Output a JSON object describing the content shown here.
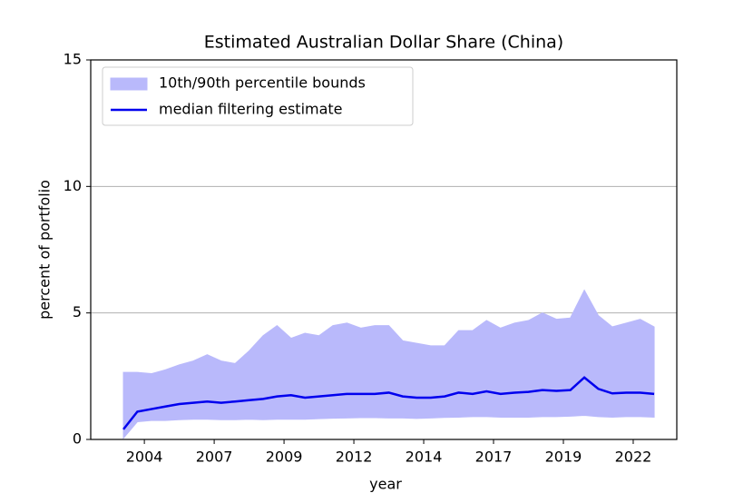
{
  "chart_data": {
    "type": "line",
    "title": "Estimated Australian Dollar Share (China)",
    "xlabel": "year",
    "ylabel": "percent of portfolio",
    "x": [
      2003.25,
      2003.75,
      2004.25,
      2004.75,
      2005.25,
      2005.75,
      2006.25,
      2006.75,
      2007.25,
      2007.75,
      2008.25,
      2008.75,
      2009.25,
      2009.75,
      2010.25,
      2010.75,
      2011.25,
      2011.75,
      2012.25,
      2012.75,
      2013.25,
      2013.75,
      2014.25,
      2014.75,
      2015.25,
      2015.75,
      2016.25,
      2016.75,
      2017.25,
      2017.75,
      2018.25,
      2018.75,
      2019.25,
      2019.75,
      2020.25,
      2020.75,
      2021.25,
      2021.75,
      2022.25
    ],
    "bands": [
      {
        "name": "10th/90th percentile bounds",
        "color": "#b9b9fb",
        "lower": [
          0.05,
          0.7,
          0.75,
          0.75,
          0.78,
          0.8,
          0.8,
          0.78,
          0.78,
          0.8,
          0.78,
          0.8,
          0.8,
          0.8,
          0.82,
          0.84,
          0.85,
          0.86,
          0.86,
          0.85,
          0.85,
          0.83,
          0.85,
          0.87,
          0.88,
          0.9,
          0.9,
          0.88,
          0.88,
          0.88,
          0.9,
          0.9,
          0.92,
          0.95,
          0.9,
          0.88,
          0.9,
          0.9,
          0.88
        ],
        "upper": [
          2.65,
          2.65,
          2.6,
          2.75,
          2.95,
          3.1,
          3.35,
          3.1,
          3.0,
          3.5,
          4.1,
          4.5,
          4.0,
          4.2,
          4.1,
          4.5,
          4.6,
          4.4,
          4.5,
          4.5,
          3.9,
          3.8,
          3.7,
          3.7,
          4.3,
          4.3,
          4.7,
          4.4,
          4.6,
          4.7,
          5.0,
          4.75,
          4.8,
          5.9,
          4.9,
          4.45,
          4.6,
          4.75,
          4.45
        ]
      }
    ],
    "series": [
      {
        "name": "median filtering estimate",
        "color": "#0000ee",
        "values": [
          0.4,
          1.1,
          1.2,
          1.3,
          1.4,
          1.45,
          1.5,
          1.45,
          1.5,
          1.55,
          1.6,
          1.7,
          1.75,
          1.65,
          1.7,
          1.75,
          1.8,
          1.8,
          1.8,
          1.85,
          1.7,
          1.65,
          1.65,
          1.7,
          1.85,
          1.8,
          1.9,
          1.8,
          1.85,
          1.88,
          1.95,
          1.92,
          1.95,
          2.45,
          2.0,
          1.82,
          1.85,
          1.85,
          1.8
        ]
      }
    ],
    "xlim": [
      2002.08,
      2023.06
    ],
    "xticks": [
      {
        "value": 2004,
        "label": "2004"
      },
      {
        "value": 2006.5,
        "label": "2007"
      },
      {
        "value": 2009,
        "label": "2009"
      },
      {
        "value": 2011.5,
        "label": "2012"
      },
      {
        "value": 2014,
        "label": "2014"
      },
      {
        "value": 2016.5,
        "label": "2017"
      },
      {
        "value": 2019,
        "label": "2019"
      },
      {
        "value": 2021.5,
        "label": "2022"
      }
    ],
    "ylim": [
      0,
      15
    ],
    "yticks": [
      0,
      5,
      10,
      15
    ],
    "grid": true,
    "legend": "upper left"
  }
}
